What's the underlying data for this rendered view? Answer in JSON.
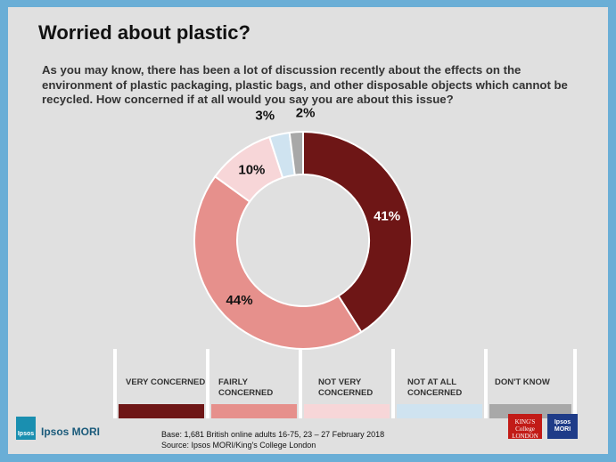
{
  "title": "Worried about plastic?",
  "question": "As you may know, there has been a lot of discussion recently about the effects on the environment of plastic packaging, plastic bags, and other disposable objects which cannot be recycled. How concerned if at all would you say you are about this issue?",
  "chart_data": {
    "type": "pie",
    "donut": true,
    "categories": [
      "VERY CONCERNED",
      "FAIRLY CONCERNED",
      "NOT VERY CONCERNED",
      "NOT AT ALL CONCERNED",
      "DON'T KNOW"
    ],
    "values": [
      41,
      44,
      10,
      3,
      2
    ],
    "labels": [
      "41%",
      "44%",
      "10%",
      "3%",
      "2%"
    ],
    "colors": [
      "#6e1616",
      "#e6908c",
      "#f7d6d8",
      "#cfe3f0",
      "#a8a8a8"
    ],
    "legend_position": "bottom"
  },
  "footer": {
    "base": "Base: 1,681 British online adults 16-75, 23 – 27 February 2018",
    "source": "Source: Ipsos MORI/King's College London"
  },
  "logos": {
    "ipsos_mark": "Ipsos",
    "ipsos_name": "Ipsos MORI",
    "kcl_line1": "KING'S",
    "kcl_line2": "College",
    "kcl_line3": "LONDON",
    "mori_line1": "Ipsos",
    "mori_line2": "MORI"
  }
}
